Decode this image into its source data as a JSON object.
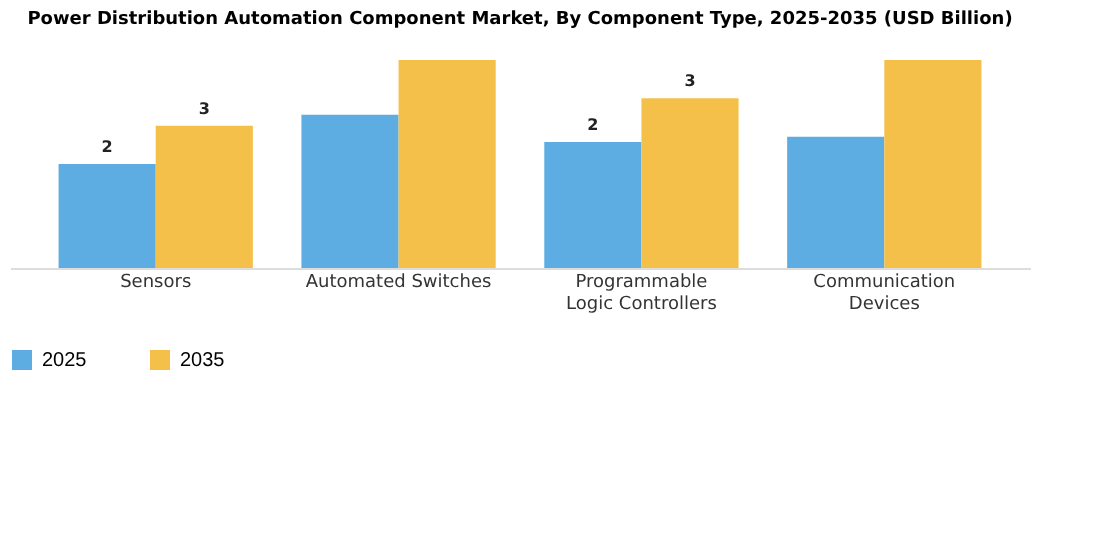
{
  "chart_data": {
    "type": "bar",
    "title": "Power Distribution Automation Component Market, By Component Type, 2025-2035 (USD Billion)",
    "categories": [
      "Sensors",
      "Automated Switches",
      "Programmable Logic Controllers",
      "Communication Devices"
    ],
    "series": [
      {
        "name": "2025",
        "color": "#5dade2",
        "values": [
          1.9,
          2.8,
          2.3,
          2.4
        ],
        "value_labels": [
          "2",
          null,
          "2",
          null
        ]
      },
      {
        "name": "2035",
        "color": "#f5c04a",
        "values": [
          2.6,
          3.8,
          3.1,
          3.8
        ],
        "value_labels": [
          "3",
          null,
          "3",
          null
        ]
      }
    ],
    "legend": "bottom"
  }
}
